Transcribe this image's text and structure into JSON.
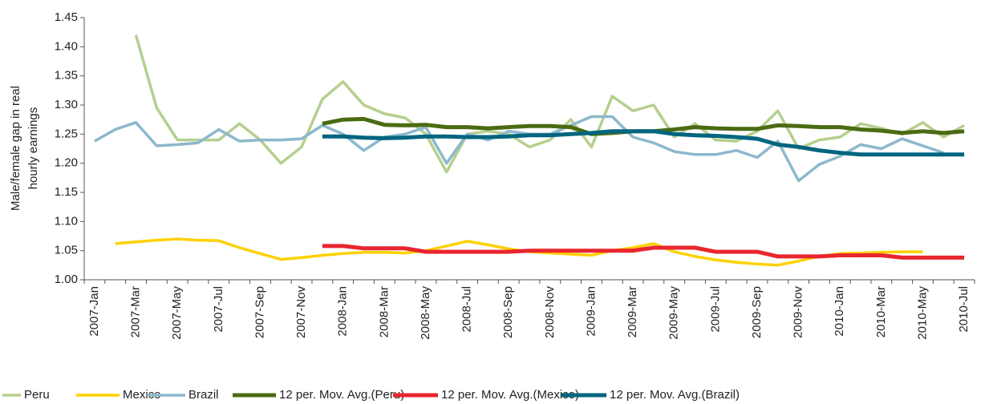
{
  "chart_data": {
    "type": "line",
    "ylabel": [
      "Male/female gap in real",
      "hourly earnings"
    ],
    "categories": [
      "2007-Jan",
      null,
      "2007-Mar",
      null,
      "2007-May",
      null,
      "2007-Jul",
      null,
      "2007-Sep",
      null,
      "2007-Nov",
      null,
      "2008-Jan",
      null,
      "2008-Mar",
      null,
      "2008-May",
      null,
      "2008-Jul",
      null,
      "2008-Sep",
      null,
      "2008-Nov",
      null,
      "2009-Jan",
      null,
      "2009-Mar",
      null,
      "2009-May",
      null,
      "2009-Jul",
      null,
      "2009-Sep",
      null,
      "2009-Nov",
      null,
      "2010-Jan",
      null,
      "2010-Mar",
      null,
      "2010-May",
      null,
      "2010-Jul"
    ],
    "ylim": [
      1.0,
      1.45
    ],
    "yticks": [
      {
        "value": 1.0,
        "label": "1.00"
      },
      1.05,
      {
        "value": 1.1,
        "label": "1.10"
      },
      1.15,
      {
        "value": 1.2,
        "label": "1.20"
      },
      1.25,
      {
        "value": 1.3,
        "label": "1.30"
      },
      1.35,
      {
        "value": 1.4,
        "label": "1.40"
      },
      1.45
    ],
    "grid": false,
    "legend": "bottom",
    "series": [
      {
        "name": "Peru",
        "color": "#b5cf8e",
        "width": 3.5,
        "values": [
          null,
          null,
          1.42,
          1.295,
          1.24,
          1.24,
          1.24,
          1.268,
          1.24,
          1.2,
          1.228,
          1.31,
          1.34,
          1.3,
          1.285,
          1.278,
          1.25,
          1.185,
          1.25,
          1.255,
          1.25,
          1.228,
          1.24,
          1.275,
          1.228,
          1.315,
          1.29,
          1.3,
          1.245,
          1.268,
          1.24,
          1.238,
          1.255,
          1.29,
          1.225,
          1.24,
          1.245,
          1.268,
          1.26,
          1.25,
          1.27,
          1.245,
          1.265
        ]
      },
      {
        "name": "Mexico",
        "color": "#ffd100",
        "width": 3.5,
        "values": [
          null,
          1.062,
          1.065,
          1.068,
          1.07,
          1.068,
          1.067,
          1.055,
          1.045,
          1.035,
          1.038,
          1.042,
          1.045,
          1.047,
          1.047,
          1.046,
          1.05,
          1.058,
          1.066,
          1.06,
          1.053,
          1.048,
          1.046,
          1.044,
          1.042,
          1.05,
          1.055,
          1.062,
          1.048,
          1.04,
          1.034,
          1.03,
          1.027,
          1.025,
          1.032,
          1.04,
          1.045,
          1.046,
          1.047,
          1.048,
          1.048,
          null,
          null
        ]
      },
      {
        "name": "Brazil",
        "color": "#8cb8cc",
        "width": 3.5,
        "values": [
          1.238,
          1.258,
          1.27,
          1.23,
          1.232,
          1.235,
          1.258,
          1.238,
          1.24,
          1.24,
          1.242,
          1.265,
          1.25,
          1.222,
          1.245,
          1.25,
          1.262,
          1.2,
          1.25,
          1.24,
          1.255,
          1.25,
          1.25,
          1.265,
          1.28,
          1.28,
          1.245,
          1.235,
          1.22,
          1.215,
          1.215,
          1.222,
          1.21,
          1.238,
          1.17,
          1.198,
          1.212,
          1.232,
          1.225,
          1.242,
          1.23,
          1.218,
          null
        ]
      },
      {
        "name": "12 per. Mov. Avg.(Peru)",
        "color": "#4b6b12",
        "width": 5,
        "values": [
          null,
          null,
          null,
          null,
          null,
          null,
          null,
          null,
          null,
          null,
          null,
          1.268,
          1.275,
          1.276,
          1.266,
          1.265,
          1.266,
          1.262,
          1.262,
          1.26,
          1.262,
          1.264,
          1.264,
          1.262,
          1.25,
          1.252,
          1.255,
          1.255,
          1.258,
          1.262,
          1.26,
          1.259,
          1.259,
          1.265,
          1.264,
          1.262,
          1.262,
          1.258,
          1.256,
          1.252,
          1.255,
          1.252,
          1.255
        ]
      },
      {
        "name": "12 per. Mov. Avg.(Mexico)",
        "color": "#e8262e",
        "width": 5,
        "values": [
          null,
          null,
          null,
          null,
          null,
          null,
          null,
          null,
          null,
          null,
          null,
          1.058,
          1.058,
          1.054,
          1.054,
          1.054,
          1.048,
          1.048,
          1.048,
          1.048,
          1.048,
          1.05,
          1.05,
          1.05,
          1.05,
          1.05,
          1.05,
          1.055,
          1.055,
          1.055,
          1.048,
          1.048,
          1.048,
          1.04,
          1.04,
          1.04,
          1.042,
          1.042,
          1.042,
          1.038,
          1.038,
          1.038,
          1.038
        ]
      },
      {
        "name": "12 per. Mov. Avg.(Brazil)",
        "color": "#00657f",
        "width": 5,
        "values": [
          null,
          null,
          null,
          null,
          null,
          null,
          null,
          null,
          null,
          null,
          null,
          1.246,
          1.246,
          1.244,
          1.243,
          1.244,
          1.246,
          1.246,
          1.245,
          1.245,
          1.246,
          1.248,
          1.248,
          1.25,
          1.252,
          1.255,
          1.255,
          1.255,
          1.25,
          1.248,
          1.247,
          1.245,
          1.242,
          1.232,
          1.228,
          1.222,
          1.218,
          1.215,
          1.215,
          1.215,
          1.215,
          1.215,
          1.215
        ]
      }
    ]
  }
}
